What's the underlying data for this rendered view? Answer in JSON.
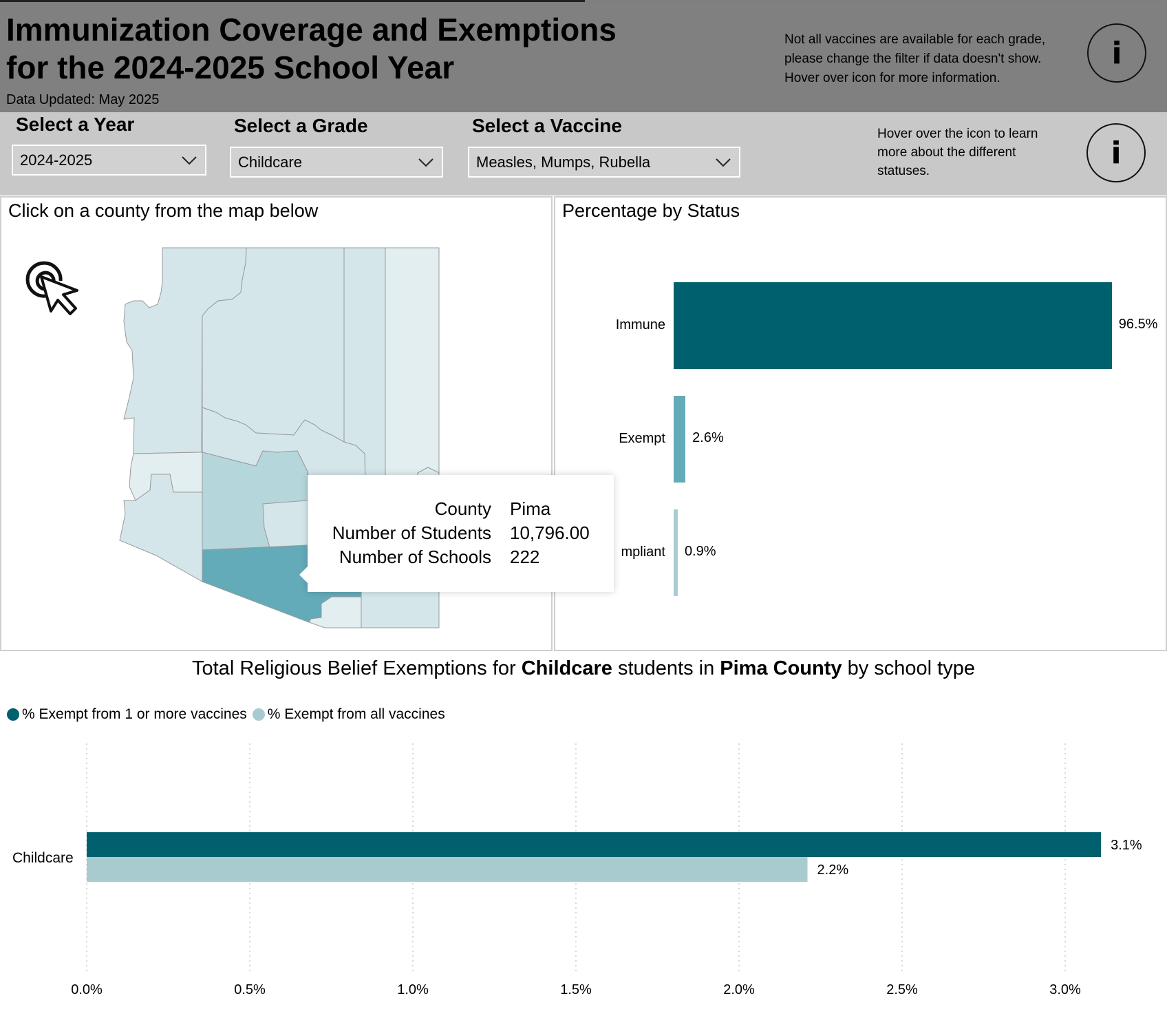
{
  "header": {
    "title_line1": "Immunization Coverage and Exemptions",
    "title_line2": "for the 2024-2025 School Year",
    "updated": "Data Updated: May 2025",
    "note_line1": "Not all vaccines are available for each grade,",
    "note_line2": "please change the filter if data doesn't show.",
    "note_line3": "Hover over icon for more information.",
    "info_glyph": "i"
  },
  "filters": {
    "year": {
      "label": "Select a Year",
      "value": "2024-2025"
    },
    "grade": {
      "label": "Select a Grade",
      "value": "Childcare"
    },
    "vaccine": {
      "label": "Select a Vaccine",
      "value": "Measles, Mumps, Rubella"
    },
    "note_line1": "Hover over the icon to learn",
    "note_line2": "more about the different",
    "note_line3": "statuses.",
    "info_glyph": "i"
  },
  "map": {
    "title": "Click on a county from the map below",
    "tooltip": {
      "rows": [
        {
          "key": "County",
          "value": "Pima"
        },
        {
          "key": "Number of Students",
          "value": "10,796.00"
        },
        {
          "key": "Number of Schools",
          "value": "222"
        }
      ]
    },
    "colors": {
      "light": "#d4e6ea",
      "lighter": "#e3eef0",
      "mid": "#b5d6db",
      "selected": "#63abb8",
      "border": "#9a9a9a"
    },
    "icon": "click-cursor-icon"
  },
  "status_chart": {
    "title": "Percentage by Status",
    "chart_data": {
      "type": "bar",
      "orientation": "horizontal",
      "categories": [
        "Immune",
        "Exempt",
        "Non-Compliant"
      ],
      "visible_category_labels": [
        "Immune",
        "Exempt",
        "mpliant"
      ],
      "values": [
        96.5,
        2.6,
        0.9
      ],
      "value_labels": [
        "96.5%",
        "2.6%",
        "0.9%"
      ],
      "colors": [
        "#00606e",
        "#63abb8",
        "#a8cdd2"
      ],
      "xlim": [
        0,
        100
      ]
    }
  },
  "exemption_chart": {
    "title_parts": [
      "Total Religious Belief Exemptions for ",
      "Childcare",
      " students in ",
      "Pima County",
      " by school type"
    ],
    "legend": [
      {
        "label": "% Exempt from 1 or more vaccines",
        "color": "#00606e"
      },
      {
        "label": "% Exempt from all vaccines",
        "color": "#a8cbd0"
      }
    ],
    "chart_data": {
      "type": "bar",
      "orientation": "horizontal",
      "categories": [
        "Childcare"
      ],
      "series": [
        {
          "name": "% Exempt from 1 or more vaccines",
          "values": [
            3.11
          ],
          "labels": [
            "3.1%"
          ]
        },
        {
          "name": "% Exempt from all vaccines",
          "values": [
            2.21
          ],
          "labels": [
            "2.2%"
          ]
        }
      ],
      "ticks": [
        "0.0%",
        "0.5%",
        "1.0%",
        "1.5%",
        "2.0%",
        "2.5%",
        "3.0%"
      ],
      "tick_values": [
        0,
        0.5,
        1.0,
        1.5,
        2.0,
        2.5,
        3.0
      ],
      "xlim": [
        0,
        3.0
      ],
      "grid": true
    }
  }
}
